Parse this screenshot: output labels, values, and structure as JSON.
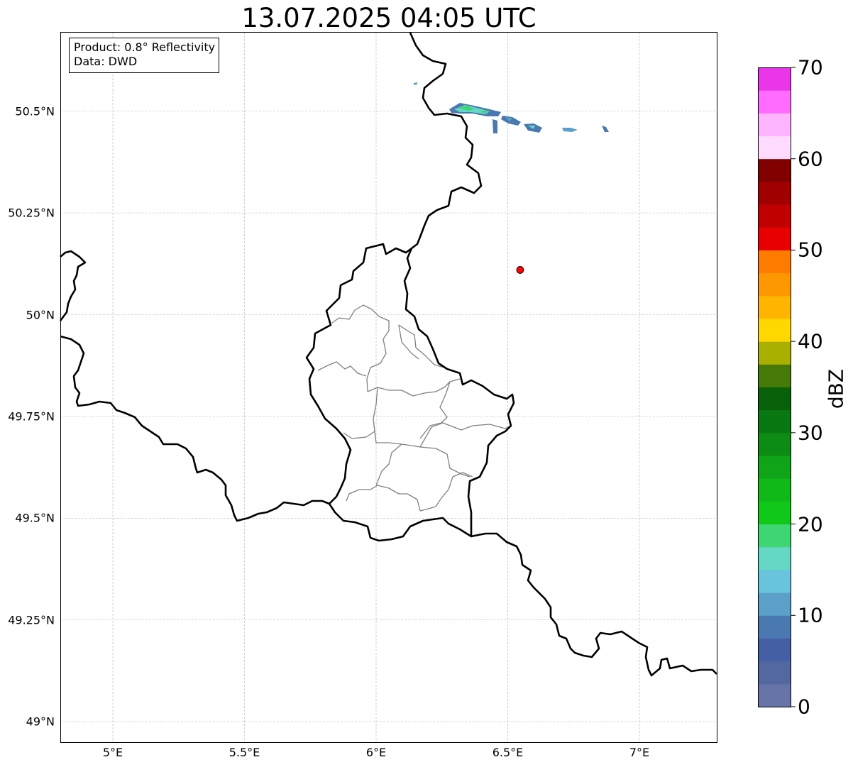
{
  "title": "13.07.2025 04:05 UTC",
  "info_box": {
    "product": "Product: 0.8° Reflectivity",
    "data": "Data: DWD"
  },
  "map": {
    "extent": {
      "lon": [
        4.8,
        7.3
      ],
      "lat": [
        48.95,
        50.72
      ]
    },
    "grid": true,
    "lat_ticks": [
      {
        "value": 50.5,
        "label": "50.5°N"
      },
      {
        "value": 50.25,
        "label": "50.25°N"
      },
      {
        "value": 50.0,
        "label": "50°N"
      },
      {
        "value": 49.75,
        "label": "49.75°N"
      },
      {
        "value": 49.5,
        "label": "49.5°N"
      },
      {
        "value": 49.25,
        "label": "49.25°N"
      },
      {
        "value": 49.0,
        "label": "49°N"
      }
    ],
    "lon_ticks": [
      {
        "value": 5.0,
        "label": "5°E"
      },
      {
        "value": 5.5,
        "label": "5.5°E"
      },
      {
        "value": 6.0,
        "label": "6°E"
      },
      {
        "value": 6.5,
        "label": "6.5°E"
      },
      {
        "value": 7.0,
        "label": "7°E"
      }
    ],
    "radar_marker": {
      "lon": 6.547,
      "lat": 50.11,
      "color": "#ff0000"
    },
    "colors": {
      "border": "#000000",
      "admin": "#808080",
      "grid": "#b0b0b0"
    }
  },
  "colorbar": {
    "unit": "dBZ",
    "min": 0,
    "max": 70,
    "step": 2.5,
    "tick_values": [
      0,
      10,
      20,
      30,
      40,
      50,
      60,
      70
    ],
    "tick_labels": [
      "0",
      "10",
      "20",
      "30",
      "40",
      "50",
      "60",
      "70"
    ],
    "colors": [
      "#6674a8",
      "#5468a0",
      "#445fa3",
      "#4a78b0",
      "#5ba0c8",
      "#68c4dc",
      "#64d8c4",
      "#3dd672",
      "#10c818",
      "#10b818",
      "#10a418",
      "#0c8c14",
      "#0a7812",
      "#086008",
      "#467a08",
      "#aab000",
      "#ffd800",
      "#ffb400",
      "#ff9800",
      "#ff7c00",
      "#e80000",
      "#c00000",
      "#a00000",
      "#800000",
      "#ffdcff",
      "#ffb4ff",
      "#ff6cff",
      "#e836e8"
    ]
  }
}
